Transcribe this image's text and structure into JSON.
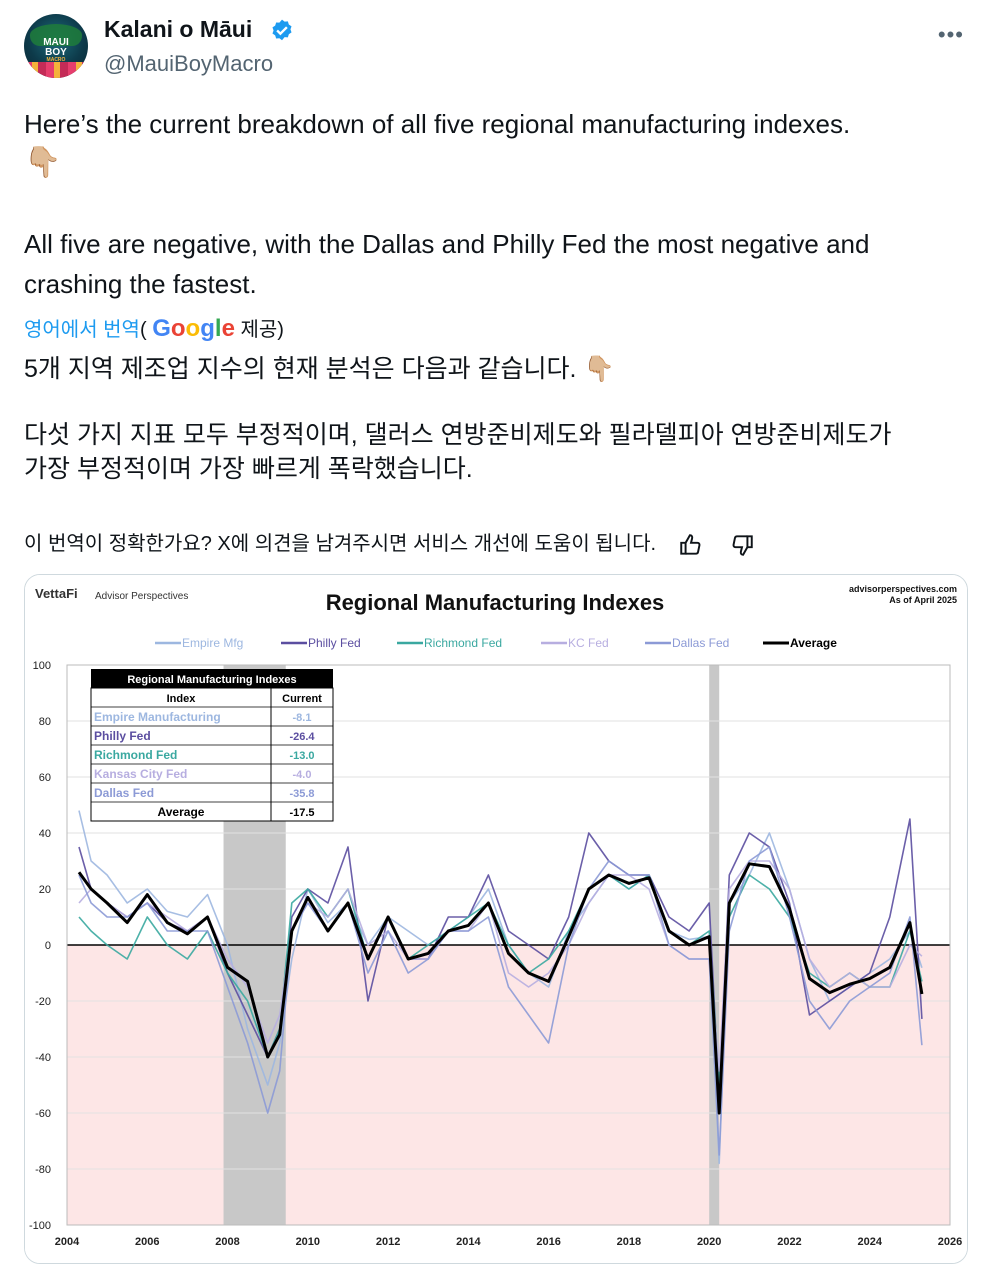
{
  "author": {
    "name": "Kalani o Māui",
    "handle": "@MauiBoyMacro",
    "avatar_text_1": "MAUI",
    "avatar_text_2": "BOY",
    "avatar_text_3": "MACRO"
  },
  "tweet": {
    "text_line_1": "Here’s the current breakdown of all five regional manufacturing indexes.",
    "text_line_2": "All five are negative, with the Dallas and Philly Fed the most negative and",
    "text_line_3": "crashing the fastest.",
    "emoji": "👇🏼",
    "translate_label": "영어에서 번역",
    "google_label": "Google",
    "translate_suffix": " 제공)",
    "paren_open": "(",
    "kr_line_1": "5개 지역 제조업 지수의 현재 분석은 다음과 같습니다.",
    "kr_line_2": "다섯 가지 지표 모두 부정적이며, 댈러스 연방준비제도와 필라델피아 연방준비제도가",
    "kr_line_3": "가장 부정적이며 가장 빠르게 폭락했습니다.",
    "feedback": "이 번역이 정확한가요? X에 의견을 남겨주시면 서비스 개선에 도움이 됩니다."
  },
  "icons": {
    "verified": "verified-badge-icon",
    "more": "more-icon",
    "thumbs_up": "thumbs-up-icon",
    "thumbs_down": "thumbs-down-icon"
  },
  "colors": {
    "verified": "#1d9bf0",
    "link": "#1d9bf0",
    "empire": "#9db7e0",
    "philly": "#5b4ea0",
    "richmond": "#3aa8a0",
    "kc": "#b7aee0",
    "dallas": "#8c9ad6",
    "average": "#000000"
  },
  "chart_data": {
    "type": "line",
    "brand": "VettaFi",
    "brand_sub": "Advisor Perspectives",
    "source": "advisorperspectives.com",
    "as_of": "As of April 2025",
    "title": "Regional Manufacturing Indexes",
    "ylim": [
      -100,
      100
    ],
    "yticks": [
      "100",
      "80",
      "60",
      "40",
      "20",
      "0",
      "-20",
      "-40",
      "-60",
      "-80",
      "-100"
    ],
    "xlim": [
      2004,
      2026
    ],
    "xticks": [
      "2004",
      "2006",
      "2008",
      "2010",
      "2012",
      "2014",
      "2016",
      "2018",
      "2020",
      "2022",
      "2024",
      "2026"
    ],
    "recessions": [
      [
        2007.9,
        2009.45
      ],
      [
        2020.0,
        2020.25
      ]
    ],
    "legend_placement": "top",
    "legend": [
      "Empire Mfg",
      "Philly Fed",
      "Richmond Fed",
      "KC Fed",
      "Dallas Fed",
      "Average"
    ],
    "series": [
      {
        "name": "Empire Mfg",
        "x": [
          2004.3,
          2004.6,
          2005.0,
          2005.5,
          2006.0,
          2006.5,
          2007.0,
          2007.5,
          2008.0,
          2008.5,
          2009.0,
          2009.3,
          2009.6,
          2010.0,
          2010.5,
          2011.0,
          2011.5,
          2012.0,
          2012.5,
          2013.0,
          2013.5,
          2014.0,
          2014.5,
          2015.0,
          2015.5,
          2016.0,
          2016.5,
          2017.0,
          2017.5,
          2018.0,
          2018.5,
          2019.0,
          2019.5,
          2020.0,
          2020.25,
          2020.5,
          2021.0,
          2021.5,
          2022.0,
          2022.5,
          2023.0,
          2023.5,
          2024.0,
          2024.5,
          2025.0,
          2025.3
        ],
        "values": [
          48,
          30,
          25,
          15,
          20,
          12,
          10,
          18,
          0,
          -30,
          -50,
          -35,
          -5,
          20,
          8,
          15,
          0,
          10,
          5,
          0,
          5,
          10,
          20,
          0,
          -10,
          -15,
          5,
          15,
          25,
          20,
          25,
          5,
          2,
          3,
          -78,
          15,
          25,
          40,
          20,
          -5,
          -20,
          -15,
          -10,
          -5,
          5,
          -8.1
        ]
      },
      {
        "name": "Philly Fed",
        "x": [
          2004.3,
          2004.6,
          2005.0,
          2005.5,
          2006.0,
          2006.5,
          2007.0,
          2007.5,
          2008.0,
          2008.5,
          2009.0,
          2009.3,
          2009.6,
          2010.0,
          2010.5,
          2011.0,
          2011.5,
          2012.0,
          2012.5,
          2013.0,
          2013.5,
          2014.0,
          2014.5,
          2015.0,
          2015.5,
          2016.0,
          2016.5,
          2017.0,
          2017.5,
          2018.0,
          2018.5,
          2019.0,
          2019.5,
          2020.0,
          2020.25,
          2020.5,
          2021.0,
          2021.5,
          2022.0,
          2022.5,
          2023.0,
          2023.5,
          2024.0,
          2024.5,
          2025.0,
          2025.3
        ],
        "values": [
          35,
          20,
          15,
          10,
          15,
          8,
          5,
          10,
          -10,
          -25,
          -40,
          -30,
          10,
          20,
          15,
          35,
          -20,
          10,
          -5,
          -5,
          10,
          10,
          25,
          5,
          0,
          -5,
          10,
          40,
          30,
          25,
          25,
          10,
          5,
          15,
          -55,
          25,
          40,
          35,
          15,
          -25,
          -20,
          -15,
          -10,
          10,
          45,
          -26.4
        ]
      },
      {
        "name": "Richmond Fed",
        "x": [
          2004.3,
          2004.6,
          2005.0,
          2005.5,
          2006.0,
          2006.5,
          2007.0,
          2007.5,
          2008.0,
          2008.5,
          2009.0,
          2009.3,
          2009.6,
          2010.0,
          2010.5,
          2011.0,
          2011.5,
          2012.0,
          2012.5,
          2013.0,
          2013.5,
          2014.0,
          2014.5,
          2015.0,
          2015.5,
          2016.0,
          2016.5,
          2017.0,
          2017.5,
          2018.0,
          2018.5,
          2019.0,
          2019.5,
          2020.0,
          2020.25,
          2020.5,
          2021.0,
          2021.5,
          2022.0,
          2022.5,
          2023.0,
          2023.5,
          2024.0,
          2024.5,
          2025.0,
          2025.3
        ],
        "values": [
          10,
          5,
          0,
          -5,
          10,
          0,
          -5,
          5,
          -10,
          -20,
          -40,
          -30,
          15,
          20,
          10,
          20,
          -5,
          10,
          -5,
          0,
          5,
          10,
          15,
          0,
          -10,
          -5,
          5,
          20,
          25,
          20,
          25,
          5,
          0,
          5,
          -50,
          10,
          25,
          20,
          10,
          -10,
          -15,
          -10,
          -15,
          -15,
          5,
          -13.0
        ]
      },
      {
        "name": "KC Fed",
        "x": [
          2004.3,
          2004.6,
          2005.0,
          2005.5,
          2006.0,
          2006.5,
          2007.0,
          2007.5,
          2008.0,
          2008.5,
          2009.0,
          2009.3,
          2009.6,
          2010.0,
          2010.5,
          2011.0,
          2011.5,
          2012.0,
          2012.5,
          2013.0,
          2013.5,
          2014.0,
          2014.5,
          2015.0,
          2015.5,
          2016.0,
          2016.5,
          2017.0,
          2017.5,
          2018.0,
          2018.5,
          2019.0,
          2019.5,
          2020.0,
          2020.25,
          2020.5,
          2021.0,
          2021.5,
          2022.0,
          2022.5,
          2023.0,
          2023.5,
          2024.0,
          2024.5,
          2025.0,
          2025.3
        ],
        "values": [
          15,
          20,
          15,
          10,
          15,
          10,
          5,
          10,
          -5,
          -15,
          -35,
          -25,
          5,
          15,
          10,
          20,
          0,
          5,
          -5,
          -5,
          5,
          5,
          15,
          -10,
          -15,
          -10,
          0,
          15,
          25,
          25,
          20,
          0,
          -5,
          -5,
          -45,
          20,
          30,
          30,
          20,
          -5,
          -15,
          -10,
          -15,
          -15,
          0,
          -4.0
        ]
      },
      {
        "name": "Dallas Fed",
        "x": [
          2004.3,
          2004.6,
          2005.0,
          2005.5,
          2006.0,
          2006.5,
          2007.0,
          2007.5,
          2008.0,
          2008.5,
          2009.0,
          2009.3,
          2009.6,
          2010.0,
          2010.5,
          2011.0,
          2011.5,
          2012.0,
          2012.5,
          2013.0,
          2013.5,
          2014.0,
          2014.5,
          2015.0,
          2015.5,
          2016.0,
          2016.5,
          2017.0,
          2017.5,
          2018.0,
          2018.5,
          2019.0,
          2019.5,
          2020.0,
          2020.25,
          2020.5,
          2021.0,
          2021.5,
          2022.0,
          2022.5,
          2023.0,
          2023.5,
          2024.0,
          2024.5,
          2025.0,
          2025.3
        ],
        "values": [
          25,
          15,
          10,
          10,
          15,
          5,
          5,
          5,
          -15,
          -35,
          -60,
          -45,
          5,
          15,
          5,
          15,
          -10,
          5,
          -10,
          -5,
          5,
          5,
          10,
          -15,
          -25,
          -35,
          0,
          20,
          30,
          25,
          25,
          0,
          -5,
          -5,
          -75,
          5,
          30,
          35,
          10,
          -20,
          -30,
          -20,
          -15,
          -10,
          10,
          -35.8
        ]
      },
      {
        "name": "Average",
        "x": [
          2004.3,
          2004.6,
          2005.0,
          2005.5,
          2006.0,
          2006.5,
          2007.0,
          2007.5,
          2008.0,
          2008.5,
          2009.0,
          2009.3,
          2009.6,
          2010.0,
          2010.5,
          2011.0,
          2011.5,
          2012.0,
          2012.5,
          2013.0,
          2013.5,
          2014.0,
          2014.5,
          2015.0,
          2015.5,
          2016.0,
          2016.5,
          2017.0,
          2017.5,
          2018.0,
          2018.5,
          2019.0,
          2019.5,
          2020.0,
          2020.25,
          2020.5,
          2021.0,
          2021.5,
          2022.0,
          2022.5,
          2023.0,
          2023.5,
          2024.0,
          2024.5,
          2025.0,
          2025.3
        ],
        "values": [
          26,
          20,
          15,
          8,
          18,
          8,
          4,
          10,
          -8,
          -13,
          -40,
          -32,
          5,
          17,
          5,
          15,
          -5,
          10,
          -5,
          -3,
          5,
          7,
          15,
          -3,
          -10,
          -13,
          3,
          20,
          25,
          22,
          24,
          5,
          0,
          3,
          -60,
          15,
          29,
          28,
          13,
          -12,
          -17,
          -14,
          -12,
          -8,
          8,
          -17.5
        ]
      }
    ],
    "table": {
      "title": "Regional Manufacturing Indexes",
      "columns": [
        "Index",
        "Current"
      ],
      "rows": [
        {
          "name": "Empire Manufacturing",
          "value": "-8.1"
        },
        {
          "name": "Philly Fed",
          "value": "-26.4"
        },
        {
          "name": "Richmond Fed",
          "value": "-13.0"
        },
        {
          "name": "Kansas City Fed",
          "value": "-4.0"
        },
        {
          "name": "Dallas Fed",
          "value": "-35.8"
        },
        {
          "name": "Average",
          "value": "-17.5"
        }
      ]
    }
  }
}
